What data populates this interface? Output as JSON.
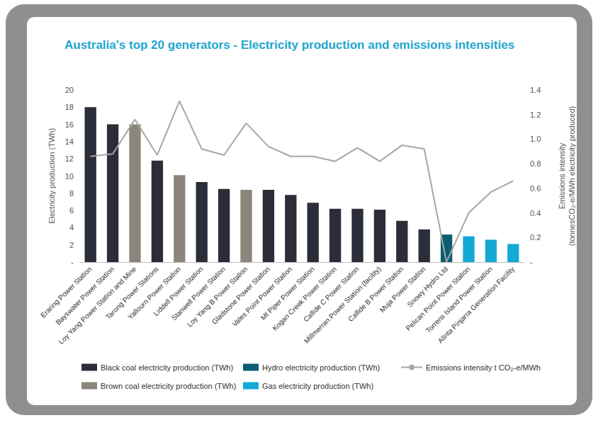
{
  "chart_data": {
    "type": "bar",
    "title": "Australia's top 20 generators - Electricity production and emissions intensities",
    "x_label": null,
    "y_label": "Electricity production (TWh)",
    "y2_label": "Emissions intensity\n(tonnesCO₂-e/MWh electricity produced)",
    "categories": [
      "Eraring Power Station",
      "Bayswater Power Station",
      "Loy Yang Power Station and Mine",
      "Tarong Power Stations",
      "Yallourn Power Station",
      "Liddell Power Station",
      "Stanwell Power Station",
      "Loy Yang B Power Station",
      "Gladstone Power Station",
      "Vales Point Power Station",
      "Mt Piper Power Station",
      "Kogan Creek Power Station",
      "Callide C Power Station",
      "Millmerran Power Station (facility)",
      "Callide B Power Station",
      "Muja Power Station",
      "Snowy Hydro Ltd",
      "Pelican Point Power Station",
      "Torrens Island Power Station",
      "Alinta Pinjarra Generation Facility"
    ],
    "series": [
      {
        "name": "Black coal electricity production (TWh)",
        "type": "bar",
        "color": "#2b2d38",
        "values": [
          18.0,
          16.0,
          null,
          11.8,
          null,
          9.3,
          8.5,
          null,
          8.4,
          7.8,
          6.9,
          6.2,
          6.2,
          6.1,
          4.8,
          3.8,
          null,
          null,
          null,
          null
        ]
      },
      {
        "name": "Brown coal electricity production (TWh)",
        "type": "bar",
        "color": "#8c857b",
        "values": [
          null,
          null,
          16.0,
          null,
          10.1,
          null,
          null,
          8.4,
          null,
          null,
          null,
          null,
          null,
          null,
          null,
          null,
          null,
          null,
          null,
          null
        ]
      },
      {
        "name": "Hydro electricity production (TWh)",
        "type": "bar",
        "color": "#0b5e72",
        "values": [
          null,
          null,
          null,
          null,
          null,
          null,
          null,
          null,
          null,
          null,
          null,
          null,
          null,
          null,
          null,
          null,
          3.2,
          null,
          null,
          null
        ]
      },
      {
        "name": "Gas electricity production (TWh)",
        "type": "bar",
        "color": "#14a9d5",
        "values": [
          null,
          null,
          null,
          null,
          null,
          null,
          null,
          null,
          null,
          null,
          null,
          null,
          null,
          null,
          null,
          null,
          null,
          3.0,
          2.6,
          2.1
        ]
      },
      {
        "name": "Emissions intensity t CO₂-e/MWh",
        "type": "line",
        "axis": "y2",
        "color": "#a6a6a6",
        "values": [
          0.86,
          0.88,
          1.16,
          0.87,
          1.31,
          0.92,
          0.87,
          1.13,
          0.94,
          0.86,
          0.86,
          0.82,
          0.93,
          0.82,
          0.95,
          0.92,
          0.0,
          0.4,
          0.57,
          0.66
        ]
      }
    ],
    "ylim": [
      0,
      20
    ],
    "yticks": [
      {
        "value": 0,
        "label": "-"
      },
      2,
      4,
      6,
      8,
      10,
      12,
      14,
      16,
      18,
      20
    ],
    "y2lim": [
      0,
      1.4
    ],
    "y2ticks": [
      {
        "value": 0,
        "label": "-"
      },
      0.2,
      0.4,
      0.6,
      0.8,
      {
        "value": 1,
        "label": "1.0"
      },
      1.2,
      1.4
    ],
    "grid": false,
    "legend": "bottom"
  }
}
